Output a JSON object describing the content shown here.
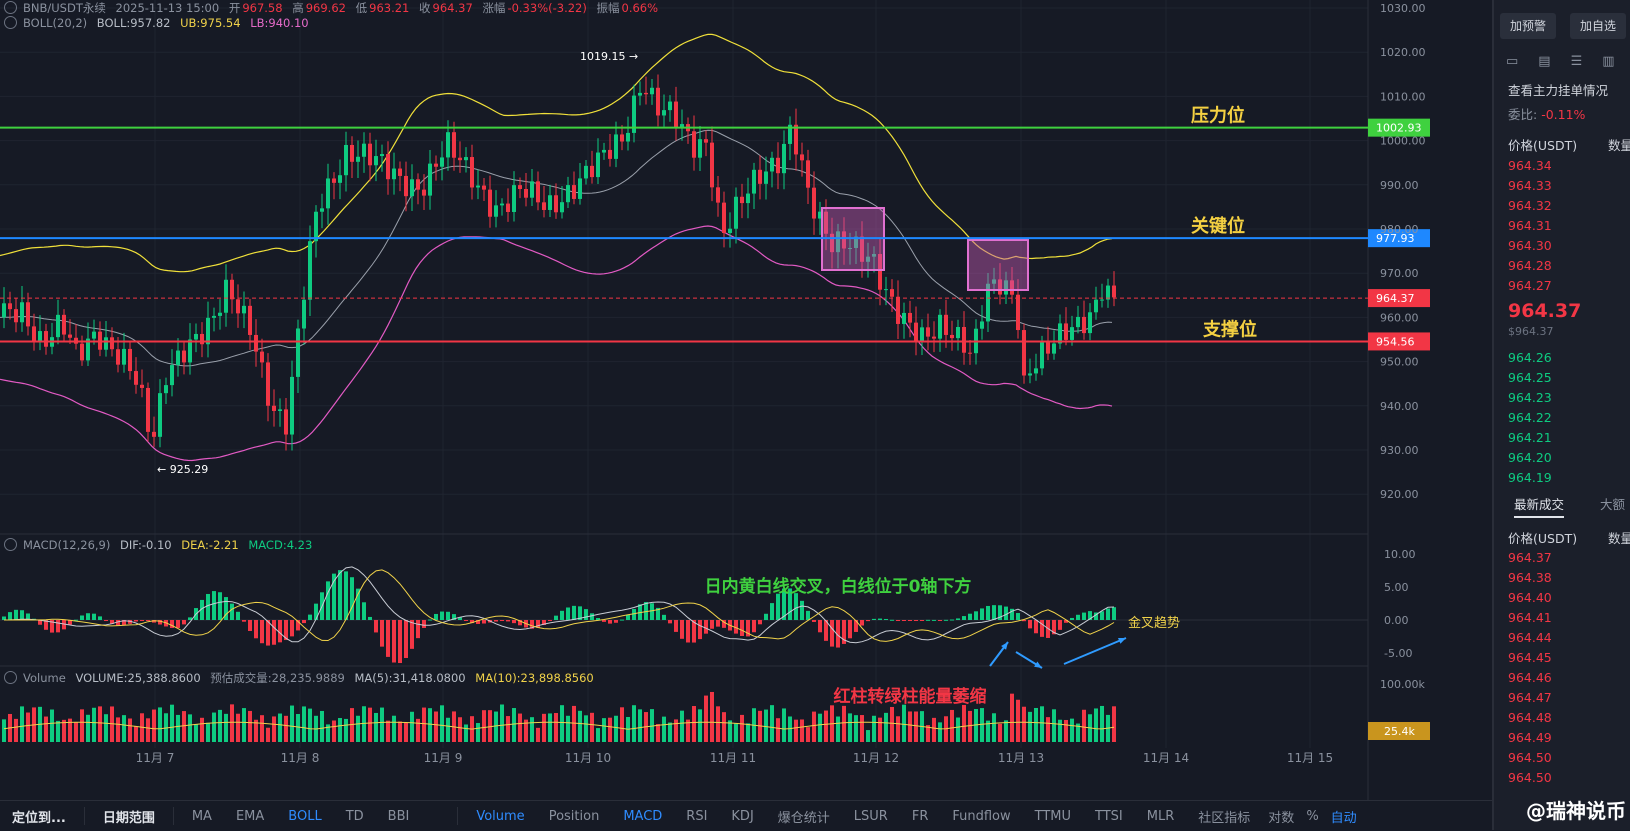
{
  "header": {
    "symbol": "BNB/USDT永续",
    "datetime": "2025-11-13 15:00",
    "open_label": "开",
    "open": "967.58",
    "high_label": "高",
    "high": "969.62",
    "low_label": "低",
    "low": "963.21",
    "close_label": "收",
    "close": "964.37",
    "change_label": "涨幅",
    "change": "-0.33%(-3.22)",
    "amp_label": "振幅",
    "amp": "0.66%"
  },
  "boll": {
    "name": "BOLL(20,2)",
    "boll": "BOLL:957.82",
    "ub": "UB:975.54",
    "lb": "LB:940.10"
  },
  "macd": {
    "name": "MACD(12,26,9)",
    "dif": "DIF:-0.10",
    "dea": "DEA:-2.21",
    "macd": "MACD:4.23"
  },
  "volume": {
    "name": "Volume",
    "vol": "VOLUME:25,388.8600",
    "est": "预估成交量:28,235.9889",
    "ma5": "MA(5):31,418.0800",
    "ma10": "MA(10):23,898.8560"
  },
  "price_axis": [
    "1030.00",
    "1020.00",
    "1010.00",
    "1000.00",
    "990.00",
    "980.00",
    "970.00",
    "960.00",
    "950.00",
    "940.00",
    "930.00",
    "920.00"
  ],
  "macd_axis": [
    "10.00",
    "5.00",
    "0.00",
    "-5.00"
  ],
  "vol_axis": "100.00k",
  "vol_tag": "25.4k",
  "date_axis": [
    "11月 7",
    "11月 8",
    "11月 9",
    "11月 10",
    "11月 11",
    "11月 12",
    "11月 13",
    "11月 14",
    "11月 15"
  ],
  "levels": [
    {
      "price": "1002.93",
      "label": "压力位",
      "color": "#3fd13f"
    },
    {
      "price": "977.93",
      "label": "关键位",
      "color": "#1e88ff"
    },
    {
      "price": "954.56",
      "label": "支撑位",
      "color": "#f23645"
    }
  ],
  "current_price_tag": "964.37",
  "hi_mark": "1019.15",
  "lo_mark": "925.29",
  "annotations": {
    "macd_note": "日内黄白线交叉，白线位于0轴下方",
    "golden_cross": "金叉趋势",
    "vol_note": "红柱转绿柱能量萎缩"
  },
  "toolbar": {
    "left": [
      "定位到...",
      "日期范围"
    ],
    "indicators_main": [
      "MA",
      "EMA",
      "BOLL",
      "TD",
      "BBI"
    ],
    "indicators_sub": [
      "Volume",
      "Position",
      "MACD",
      "RSI",
      "KDJ",
      "爆仓统计",
      "LSUR",
      "FR",
      "Fundflow",
      "TTMU",
      "TTSI",
      "MLR"
    ],
    "right": [
      "社区指标",
      "对数",
      "%",
      "自动"
    ]
  },
  "panel": {
    "btn_alert": "加预警",
    "btn_fav": "加自选",
    "orderbook_link": "查看主力挂单情况",
    "ratio_label": "委比:",
    "ratio_value": "-0.11%",
    "col_price": "价格(USDT)",
    "col_qty": "数量",
    "asks": [
      "964.34",
      "964.33",
      "964.32",
      "964.31",
      "964.30",
      "964.28",
      "964.27"
    ],
    "last_price": "964.37",
    "last_price_sub": "$964.37",
    "bids": [
      "964.26",
      "964.25",
      "964.23",
      "964.22",
      "964.21",
      "964.20",
      "964.19"
    ],
    "tab_trades": "最新成交",
    "tab_big": "大额",
    "trades_col_price": "价格(USDT)",
    "trades_col_qty": "数量",
    "trades": [
      "964.37",
      "964.38",
      "964.40",
      "964.41",
      "964.44",
      "964.45",
      "964.46",
      "964.47",
      "964.48",
      "964.49",
      "964.50",
      "964.50"
    ],
    "logo": "@瑞神说币"
  },
  "colors": {
    "up": "#f23645",
    "down": "#0ecb81",
    "ub": "#f0e03a",
    "lb": "#e25ac4",
    "mid": "#9aa0ab",
    "bg": "#161a25",
    "box": "#c45ab4"
  }
}
